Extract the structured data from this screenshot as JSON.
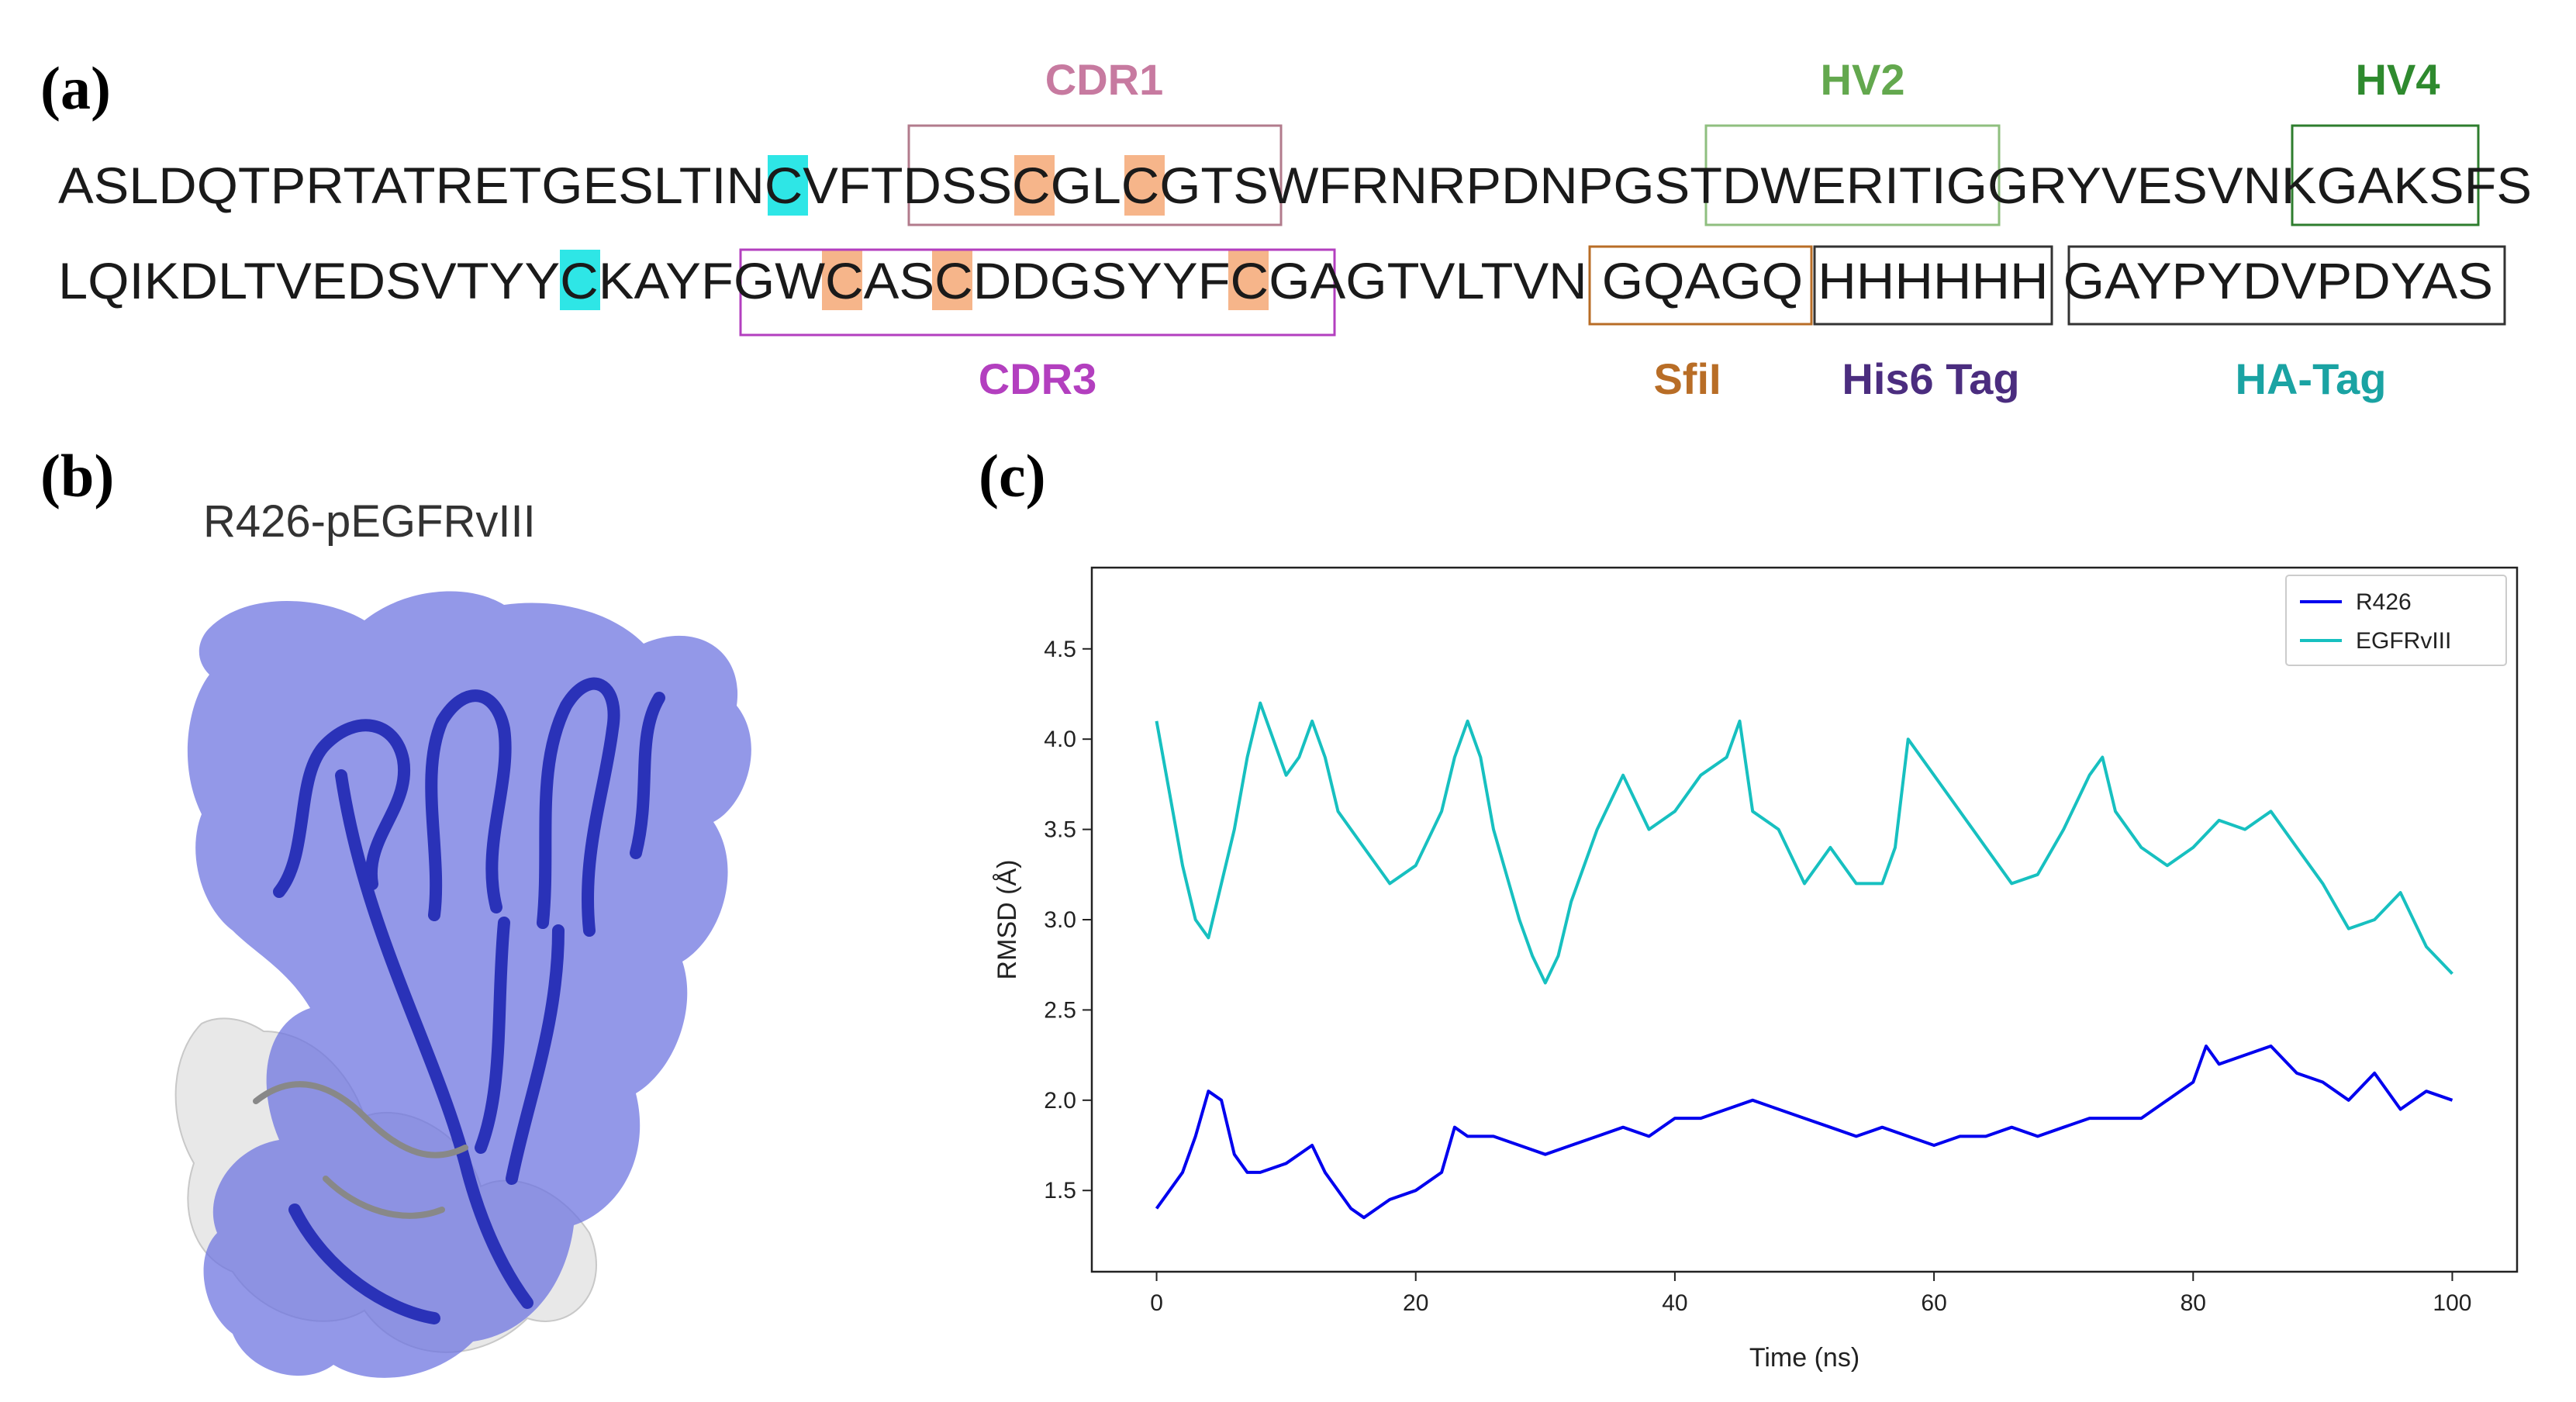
{
  "panels": {
    "a": "(a)",
    "b": "(b)",
    "c": "(c)"
  },
  "sequence": {
    "line1": [
      "ASLDQTPRTATRETGESLTIN",
      "C",
      "VFTDSS",
      "C",
      "GL",
      "C",
      "GTSWFRNRPDNPGSTDWERITIGGRYVESVNKGAKSFS"
    ],
    "line2": [
      "LQIKDLTVEDSVTYY",
      "C",
      "KAYFGW",
      "C",
      "AS",
      "C",
      "DDGSYYF",
      "C",
      "GAGTVLTVN ",
      "GQAGQ",
      " ",
      "HHHHHH",
      " ",
      "GAYPYDVPDYAS"
    ],
    "regions": {
      "cdr1": {
        "label": "CDR1",
        "color": "#c77aa0"
      },
      "hv2": {
        "label": "HV2",
        "color": "#63a84e"
      },
      "hv4": {
        "label": "HV4",
        "color": "#2e8a2e"
      },
      "cdr3": {
        "label": "CDR3",
        "color": "#b33fbf"
      },
      "sfil": {
        "label": "SfiI",
        "color": "#b86d26"
      },
      "his6": {
        "label": "His6 Tag",
        "color": "#4b2d7f"
      },
      "ha": {
        "label": "HA-Tag",
        "color": "#1aa3a3"
      }
    },
    "highlight_colors": {
      "cysteine_cyan": "#2ee6e6",
      "cysteine_orange": "#f6b58a"
    }
  },
  "structure": {
    "title": "R426-pEGFRvIII",
    "colors": {
      "nanobody_surface": "#6f76e0",
      "nanobody_ribbon": "#2a32b8",
      "antigen_surface": "#e6e6e6"
    }
  },
  "chart_data": {
    "type": "line",
    "title": "",
    "xlabel": "Time (ns)",
    "ylabel": "RMSD (Å)",
    "xlim": [
      -5,
      105
    ],
    "ylim": [
      1.05,
      4.95
    ],
    "xticks": [
      0,
      20,
      40,
      60,
      80,
      100
    ],
    "yticks": [
      1.5,
      2.0,
      2.5,
      3.0,
      3.5,
      4.0,
      4.5
    ],
    "grid": false,
    "legend_position": "top-right",
    "series": [
      {
        "name": "R426",
        "color": "#0000ee",
        "x": [
          0,
          1,
          2,
          3,
          4,
          5,
          6,
          7,
          8,
          10,
          12,
          13,
          14,
          15,
          16,
          17,
          18,
          20,
          22,
          23,
          24,
          26,
          28,
          30,
          32,
          34,
          36,
          38,
          40,
          42,
          44,
          46,
          48,
          50,
          52,
          54,
          56,
          58,
          60,
          62,
          64,
          66,
          68,
          70,
          72,
          74,
          76,
          78,
          80,
          81,
          82,
          84,
          86,
          88,
          90,
          92,
          94,
          96,
          98,
          100
        ],
        "y": [
          1.4,
          1.5,
          1.6,
          1.8,
          2.05,
          2.0,
          1.7,
          1.6,
          1.6,
          1.65,
          1.75,
          1.6,
          1.5,
          1.4,
          1.35,
          1.4,
          1.45,
          1.5,
          1.6,
          1.85,
          1.8,
          1.8,
          1.75,
          1.7,
          1.75,
          1.8,
          1.85,
          1.8,
          1.9,
          1.9,
          1.95,
          2.0,
          1.95,
          1.9,
          1.85,
          1.8,
          1.85,
          1.8,
          1.75,
          1.8,
          1.8,
          1.85,
          1.8,
          1.85,
          1.9,
          1.9,
          1.9,
          2.0,
          2.1,
          2.3,
          2.2,
          2.25,
          2.3,
          2.15,
          2.1,
          2.0,
          2.15,
          1.95,
          2.05,
          2.0
        ]
      },
      {
        "name": "EGFRvIII",
        "color": "#17c0c0",
        "x": [
          0,
          1,
          2,
          3,
          4,
          5,
          6,
          7,
          8,
          9,
          10,
          11,
          12,
          13,
          14,
          16,
          18,
          20,
          22,
          23,
          24,
          25,
          26,
          28,
          29,
          30,
          31,
          32,
          34,
          36,
          38,
          40,
          42,
          44,
          45,
          46,
          48,
          50,
          52,
          54,
          56,
          57,
          58,
          60,
          62,
          64,
          66,
          68,
          70,
          72,
          73,
          74,
          76,
          78,
          80,
          82,
          84,
          86,
          88,
          90,
          92,
          94,
          96,
          98,
          100
        ],
        "y": [
          4.1,
          3.7,
          3.3,
          3.0,
          2.9,
          3.2,
          3.5,
          3.9,
          4.2,
          4.0,
          3.8,
          3.9,
          4.1,
          3.9,
          3.6,
          3.4,
          3.2,
          3.3,
          3.6,
          3.9,
          4.1,
          3.9,
          3.5,
          3.0,
          2.8,
          2.65,
          2.8,
          3.1,
          3.5,
          3.8,
          3.5,
          3.6,
          3.8,
          3.9,
          4.1,
          3.6,
          3.5,
          3.2,
          3.4,
          3.2,
          3.2,
          3.4,
          4.0,
          3.8,
          3.6,
          3.4,
          3.2,
          3.25,
          3.5,
          3.8,
          3.9,
          3.6,
          3.4,
          3.3,
          3.4,
          3.55,
          3.5,
          3.6,
          3.4,
          3.2,
          2.95,
          3.0,
          3.15,
          2.85,
          2.7
        ]
      }
    ]
  }
}
